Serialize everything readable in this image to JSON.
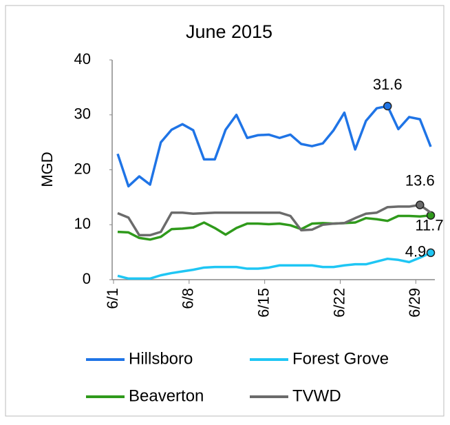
{
  "chart_data": {
    "type": "line",
    "title": "June 2015",
    "y_label": "MGD",
    "categories": [
      "6/1",
      null,
      null,
      null,
      null,
      null,
      null,
      "6/8",
      null,
      null,
      null,
      null,
      null,
      null,
      "6/15",
      null,
      null,
      null,
      null,
      null,
      null,
      "6/22",
      null,
      null,
      null,
      null,
      null,
      null,
      "6/29",
      null
    ],
    "ylim": [
      0,
      40
    ],
    "yticks": [
      0,
      10,
      20,
      30,
      40
    ],
    "grid": false,
    "legend": "bottom",
    "series": [
      {
        "name": "Hillsboro",
        "color": "#1f74e6",
        "values": [
          22.9,
          17,
          18.8,
          17.3,
          25,
          27.3,
          28.3,
          27.2,
          21.9,
          21.9,
          27.3,
          30,
          25.8,
          26.3,
          26.4,
          25.8,
          26.4,
          24.7,
          24.3,
          24.8,
          27.2,
          30.4,
          23.7,
          28.9,
          31.2,
          31.6,
          27.4,
          29.6,
          29.2,
          24.2
        ],
        "value_labels": [
          null,
          null,
          null,
          null,
          null,
          null,
          null,
          null,
          null,
          null,
          null,
          null,
          null,
          null,
          null,
          null,
          null,
          null,
          null,
          null,
          null,
          null,
          null,
          null,
          null,
          "31.6",
          null,
          null,
          null,
          null
        ]
      },
      {
        "name": "Forest Grove",
        "color": "#1fc6f4",
        "values": [
          0.7,
          0.2,
          0.2,
          0.2,
          0.8,
          1.2,
          1.5,
          1.8,
          2.2,
          2.3,
          2.3,
          2.3,
          2,
          2,
          2.2,
          2.6,
          2.6,
          2.6,
          2.6,
          2.3,
          2.3,
          2.6,
          2.8,
          2.8,
          3.3,
          3.8,
          3.6,
          3.2,
          4,
          4.9
        ],
        "value_labels": [
          null,
          null,
          null,
          null,
          null,
          null,
          null,
          null,
          null,
          null,
          null,
          null,
          null,
          null,
          null,
          null,
          null,
          null,
          null,
          null,
          null,
          null,
          null,
          null,
          null,
          null,
          null,
          null,
          null,
          "4.9"
        ]
      },
      {
        "name": "Beaverton",
        "color": "#2f9a1b",
        "values": [
          8.7,
          8.6,
          7.6,
          7.3,
          7.8,
          9.2,
          9.3,
          9.5,
          10.4,
          9.4,
          8.2,
          9.4,
          10.2,
          10.2,
          10.1,
          10.2,
          9.9,
          9.2,
          10.2,
          10.3,
          10.2,
          10.3,
          10.4,
          11.2,
          11,
          10.7,
          11.6,
          11.6,
          11.5,
          11.7
        ],
        "value_labels": [
          null,
          null,
          null,
          null,
          null,
          null,
          null,
          null,
          null,
          null,
          null,
          null,
          null,
          null,
          null,
          null,
          null,
          null,
          null,
          null,
          null,
          null,
          null,
          null,
          null,
          null,
          null,
          null,
          null,
          "11.7"
        ]
      },
      {
        "name": "TVWD",
        "color": "#6b6b6b",
        "values": [
          12.1,
          11.3,
          8.1,
          8.1,
          8.7,
          12.2,
          12.2,
          12,
          12.1,
          12.2,
          12.2,
          12.2,
          12.2,
          12.2,
          12.2,
          12.2,
          11.6,
          9,
          9.1,
          10,
          10.2,
          10.3,
          11.2,
          12,
          12.2,
          13.2,
          13.3,
          13.3,
          13.6,
          12.2
        ],
        "value_labels": [
          null,
          null,
          null,
          null,
          null,
          null,
          null,
          null,
          null,
          null,
          null,
          null,
          null,
          null,
          null,
          null,
          null,
          null,
          null,
          null,
          null,
          null,
          null,
          null,
          null,
          null,
          null,
          null,
          "13.6",
          null
        ]
      }
    ]
  }
}
